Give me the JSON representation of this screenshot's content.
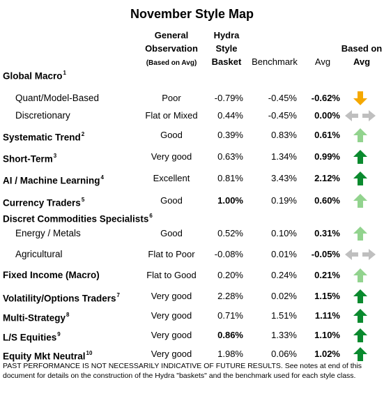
{
  "title": "November Style Map",
  "headers": {
    "observation_line1": "General",
    "observation_line2": "Observation",
    "observation_note": "(Based on Avg)",
    "hydra_line1": "Hydra",
    "hydra_line2": "Style",
    "hydra_line3": "Basket",
    "benchmark": "Benchmark",
    "avg": "Avg",
    "based_line1": "Based on",
    "based_line2": "Avg"
  },
  "rows": [
    {
      "name": "Global Macro",
      "note": "1",
      "observation": "",
      "hydra": "",
      "benchmark": "",
      "avg": "",
      "arrow": "none"
    },
    {
      "name": "Quant/Model-Based",
      "note": "",
      "observation": "Poor",
      "hydra": "-0.79%",
      "benchmark": "-0.45%",
      "avg": "-0.62%",
      "arrow": "down-orange"
    },
    {
      "name": "Discretionary",
      "note": "",
      "observation": "Flat or Mixed",
      "hydra": "0.44%",
      "benchmark": "-0.45%",
      "avg": "0.00%",
      "arrow": "sideways-gray"
    },
    {
      "name": "Systematic Trend",
      "note": "2",
      "observation": "Good",
      "hydra": "0.39%",
      "benchmark": "0.83%",
      "avg": "0.61%",
      "arrow": "up-lightgreen"
    },
    {
      "name": "Short-Term",
      "note": "3",
      "observation": "Very good",
      "hydra": "0.63%",
      "benchmark": "1.34%",
      "avg": "0.99%",
      "arrow": "up-green"
    },
    {
      "name": "AI / Machine Learning",
      "note": "4",
      "observation": "Excellent",
      "hydra": "0.81%",
      "benchmark": "3.43%",
      "avg": "2.12%",
      "arrow": "up-green"
    },
    {
      "name": "Currency Traders",
      "note": "5",
      "observation": "Good",
      "hydra": "1.00%",
      "benchmark": "0.19%",
      "avg": "0.60%",
      "arrow": "up-lightgreen"
    },
    {
      "name": "Discret Commodities Specialists",
      "note": "6",
      "observation": "",
      "hydra": "",
      "benchmark": "",
      "avg": "",
      "arrow": "none"
    },
    {
      "name": "Energy / Metals",
      "note": "",
      "observation": "Good",
      "hydra": "0.52%",
      "benchmark": "0.10%",
      "avg": "0.31%",
      "arrow": "up-lightgreen"
    },
    {
      "name": "Agricultural",
      "note": "",
      "observation": "Flat to Poor",
      "hydra": "-0.08%",
      "benchmark": "0.01%",
      "avg": "-0.05%",
      "arrow": "sideways-gray"
    },
    {
      "name": "Fixed Income (Macro)",
      "note": "",
      "observation": "Flat to Good",
      "hydra": "0.20%",
      "benchmark": "0.24%",
      "avg": "0.21%",
      "arrow": "up-lightgreen"
    },
    {
      "name": "Volatility/Options Traders",
      "note": "7",
      "observation": "Very good",
      "hydra": "2.28%",
      "benchmark": "0.02%",
      "avg": "1.15%",
      "arrow": "up-green"
    },
    {
      "name": "Multi-Strategy",
      "note": "8",
      "observation": "Very good",
      "hydra": "0.71%",
      "benchmark": "1.51%",
      "avg": "1.11%",
      "arrow": "up-green"
    },
    {
      "name": "L/S Equities",
      "note": "9",
      "observation": "Very good",
      "hydra": "0.86%",
      "benchmark": "1.33%",
      "avg": "1.10%",
      "arrow": "up-green"
    },
    {
      "name": "Equity Mkt Neutral",
      "note": "10",
      "observation": "Very good",
      "hydra": "1.98%",
      "benchmark": "0.06%",
      "avg": "1.02%",
      "arrow": "up-green"
    }
  ],
  "footnote": "PAST PERFORMANCE IS NOT NECESSARILY INDICATIVE OF FUTURE RESULTS.  See notes at end of this document for details on the construction of the Hydra \"baskets\" and the benchmark used for each style class.",
  "colors": {
    "arrow_green": "#0a8a2e",
    "arrow_lightgreen": "#92d38e",
    "arrow_orange": "#f5a800",
    "arrow_gray": "#bfbfbf"
  }
}
